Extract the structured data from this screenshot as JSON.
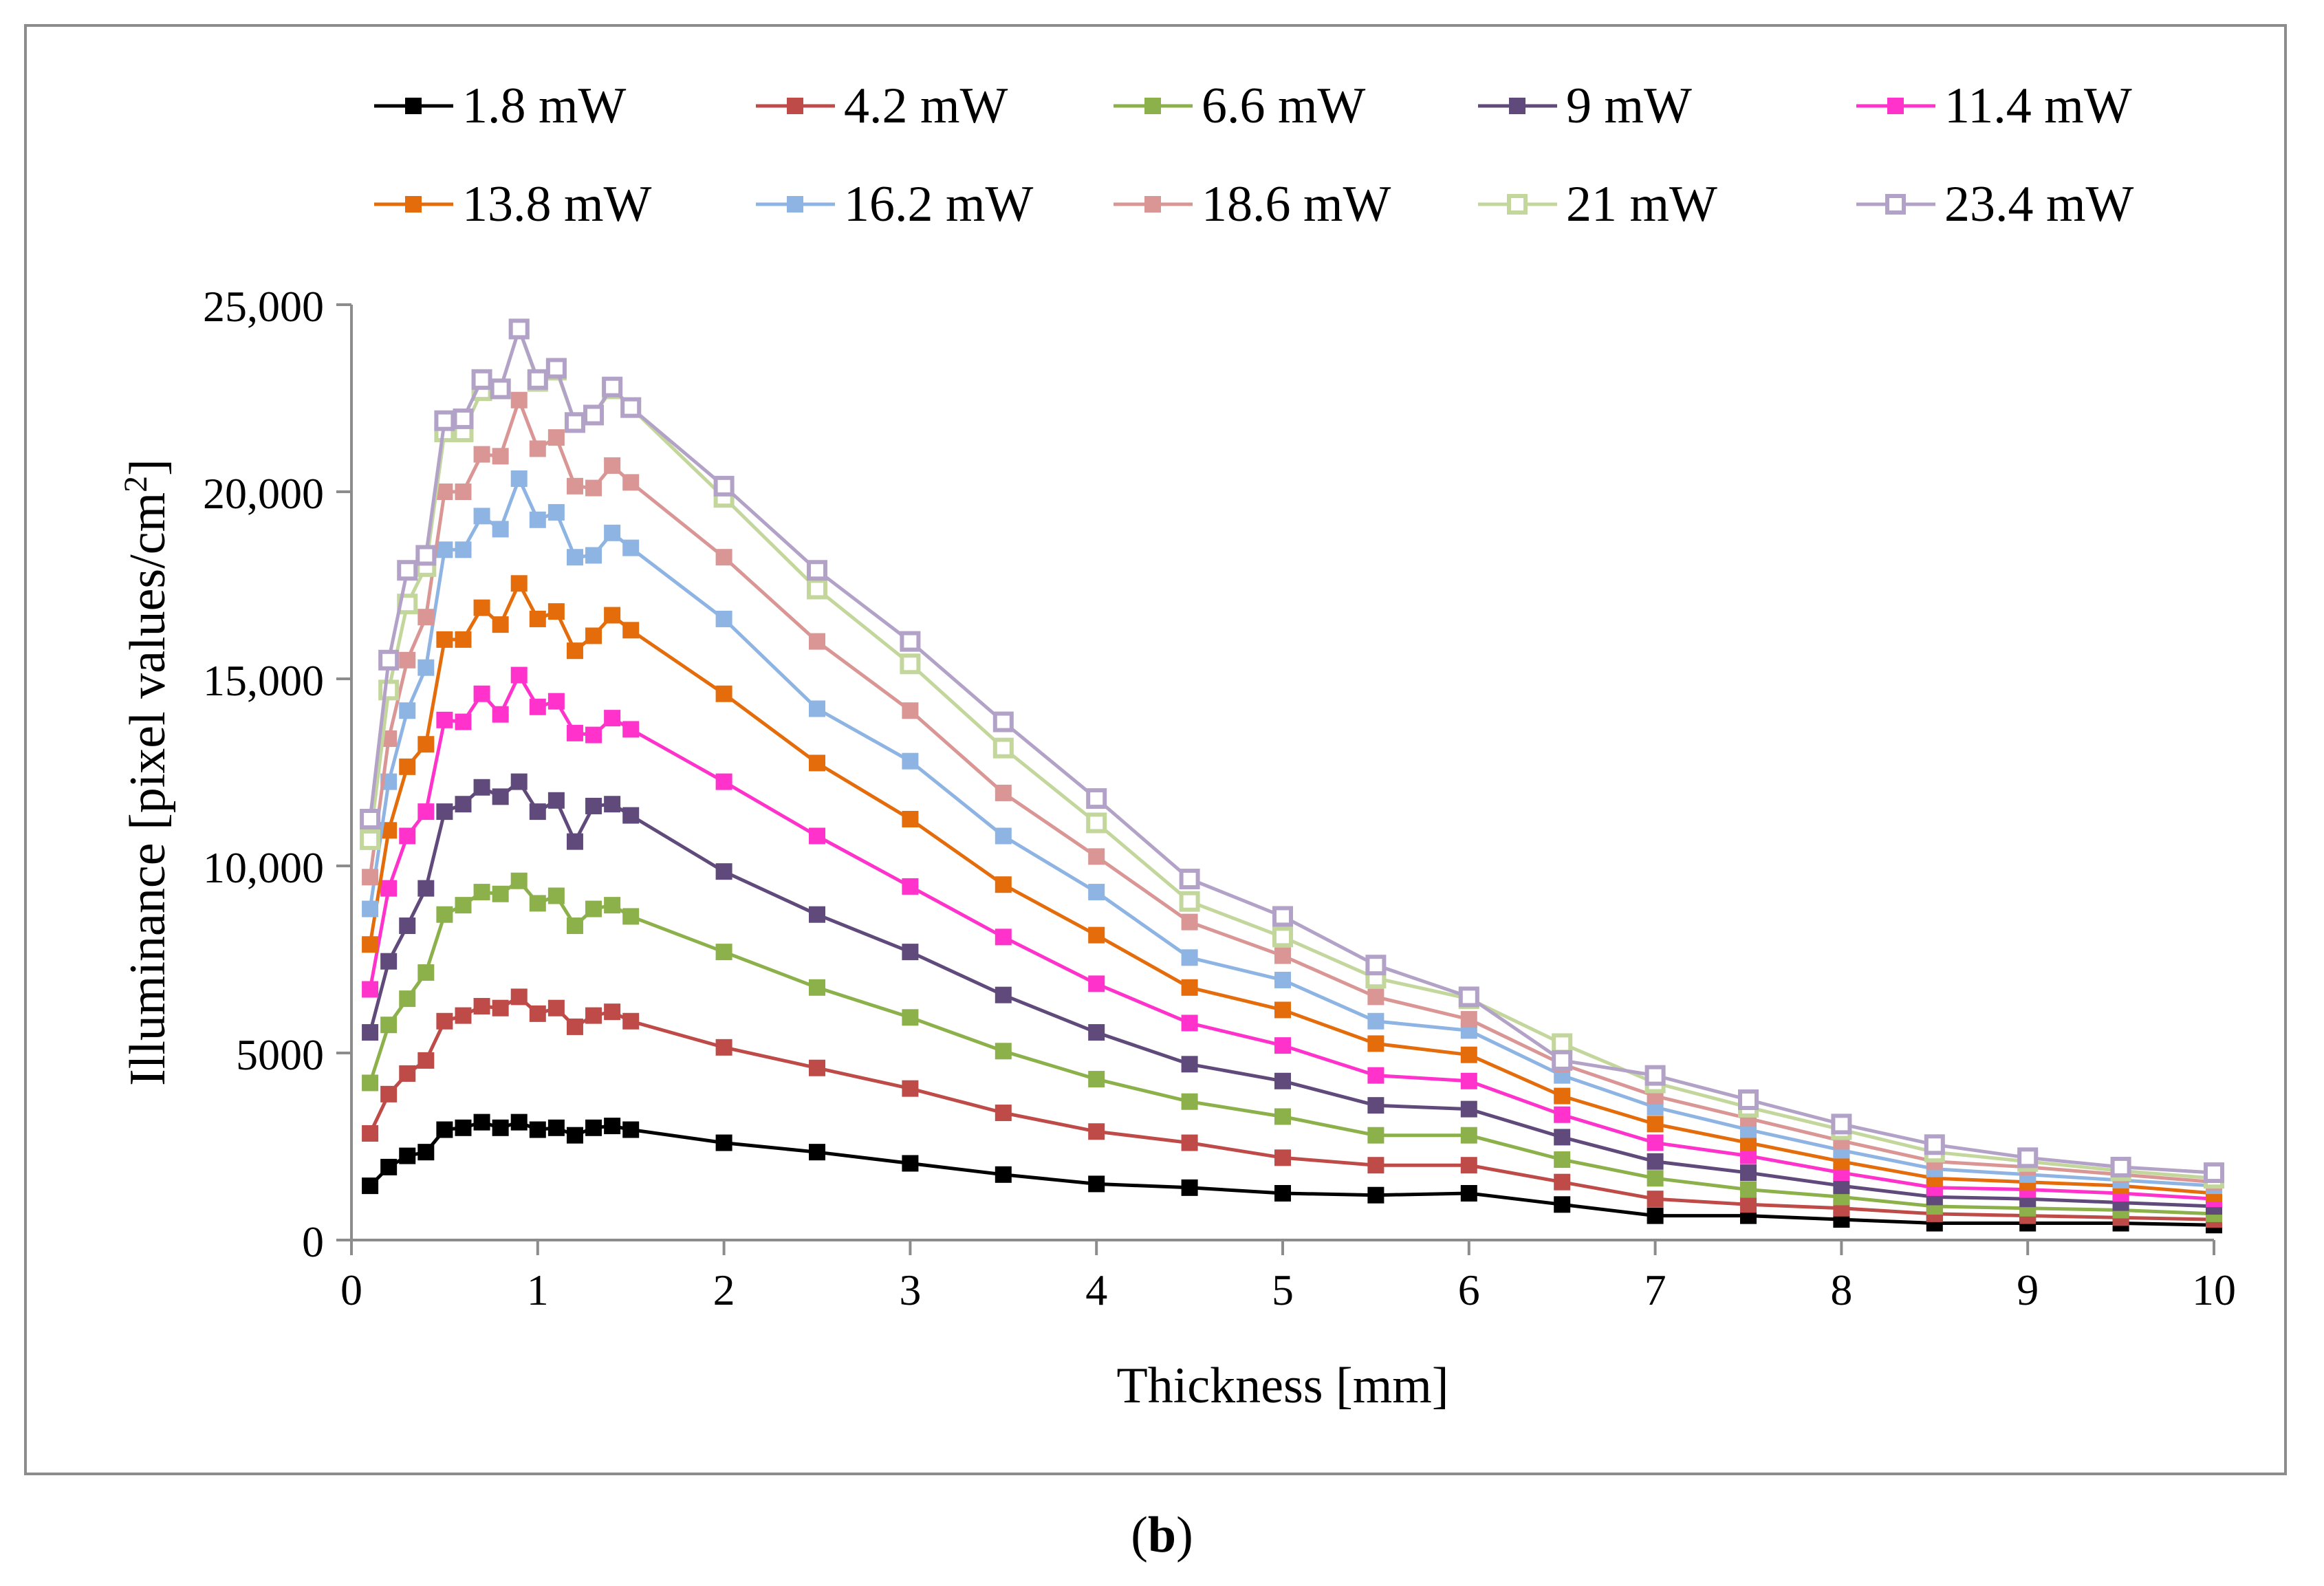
{
  "chart_data": {
    "type": "line",
    "title": "",
    "xlabel": "Thickness [mm]",
    "ylabel": "Illuminance [pixel values/cm",
    "ylabel_superscript": "2",
    "ylabel_close": "]",
    "xlim": [
      0,
      10
    ],
    "ylim": [
      0,
      25000
    ],
    "xticks": [
      0,
      1,
      2,
      3,
      4,
      5,
      6,
      7,
      8,
      9,
      10
    ],
    "xtick_labels": [
      "0",
      "1",
      "2",
      "3",
      "4",
      "5",
      "6",
      "7",
      "8",
      "9",
      "10"
    ],
    "yticks": [
      0,
      5000,
      10000,
      15000,
      20000,
      25000
    ],
    "ytick_labels": [
      "0",
      "5000",
      "10,000",
      "15,000",
      "20,000",
      "25,000"
    ],
    "grid": false,
    "legend_position": "top",
    "x": [
      0.1,
      0.2,
      0.3,
      0.4,
      0.5,
      0.6,
      0.7,
      0.8,
      0.9,
      1.0,
      1.1,
      1.2,
      1.3,
      1.4,
      1.5,
      2,
      2.5,
      3,
      3.5,
      4,
      4.5,
      5,
      5.5,
      6,
      6.5,
      7,
      7.5,
      8,
      8.5,
      9,
      9.5,
      10
    ],
    "series": [
      {
        "name": "1.8 mW",
        "color": "#000000",
        "marker": "filled",
        "values": [
          1450,
          1950,
          2250,
          2350,
          2950,
          3000,
          3150,
          3000,
          3150,
          2950,
          3000,
          2800,
          3000,
          3050,
          2950,
          2600,
          2350,
          2050,
          1750,
          1500,
          1400,
          1250,
          1200,
          1250,
          950,
          650,
          650,
          550,
          450,
          450,
          450,
          400
        ]
      },
      {
        "name": "4.2 mW",
        "color": "#be4b48",
        "marker": "filled",
        "values": [
          2850,
          3900,
          4450,
          4800,
          5850,
          6000,
          6250,
          6200,
          6500,
          6050,
          6200,
          5700,
          6000,
          6100,
          5850,
          5150,
          4600,
          4050,
          3400,
          2900,
          2600,
          2200,
          2000,
          2000,
          1550,
          1100,
          950,
          850,
          700,
          650,
          600,
          550
        ]
      },
      {
        "name": "6.6 mW",
        "color": "#8cb04a",
        "marker": "filled",
        "values": [
          4200,
          5750,
          6450,
          7150,
          8700,
          8950,
          9300,
          9250,
          9600,
          9000,
          9200,
          8400,
          8850,
          8950,
          8650,
          7700,
          6750,
          5950,
          5050,
          4300,
          3700,
          3300,
          2800,
          2800,
          2150,
          1650,
          1350,
          1150,
          900,
          850,
          800,
          700
        ]
      },
      {
        "name": "9 mW",
        "color": "#604a7b",
        "marker": "filled",
        "values": [
          5550,
          7450,
          8400,
          9400,
          11450,
          11650,
          12100,
          11850,
          12250,
          11450,
          11750,
          10650,
          11600,
          11650,
          11350,
          9850,
          8700,
          7700,
          6550,
          5550,
          4700,
          4250,
          3600,
          3500,
          2750,
          2100,
          1800,
          1450,
          1150,
          1100,
          1000,
          900
        ]
      },
      {
        "name": "11.4 mW",
        "color": "#ff33cc",
        "marker": "filled",
        "values": [
          6700,
          9400,
          10800,
          11450,
          13900,
          13850,
          14600,
          14050,
          15100,
          14250,
          14400,
          13550,
          13500,
          13950,
          13650,
          12250,
          10800,
          9450,
          8100,
          6850,
          5800,
          5200,
          4400,
          4250,
          3350,
          2600,
          2250,
          1800,
          1400,
          1350,
          1250,
          1100
        ]
      },
      {
        "name": "13.8 mW",
        "color": "#e46c0a",
        "marker": "filled",
        "values": [
          7900,
          10950,
          12650,
          13250,
          16050,
          16050,
          16900,
          16450,
          17550,
          16600,
          16800,
          15750,
          16150,
          16700,
          16300,
          14600,
          12750,
          11250,
          9500,
          8150,
          6750,
          6150,
          5250,
          4950,
          3850,
          3100,
          2600,
          2100,
          1650,
          1550,
          1450,
          1250
        ]
      },
      {
        "name": "16.2 mW",
        "color": "#8eb4e3",
        "marker": "filled",
        "values": [
          8850,
          12250,
          14150,
          15300,
          18450,
          18450,
          19350,
          19000,
          20350,
          19250,
          19450,
          18250,
          18300,
          18900,
          18500,
          16600,
          14200,
          12800,
          10800,
          9300,
          7550,
          6950,
          5850,
          5600,
          4400,
          3550,
          2950,
          2400,
          1900,
          1750,
          1600,
          1450
        ]
      },
      {
        "name": "18.6 mW",
        "color": "#d99694",
        "marker": "filled",
        "values": [
          9700,
          13400,
          15500,
          16650,
          20000,
          20000,
          21000,
          20950,
          22450,
          21150,
          21450,
          20150,
          20100,
          20700,
          20250,
          18250,
          16000,
          14150,
          11950,
          10250,
          8500,
          7600,
          6500,
          5900,
          4700,
          3850,
          3250,
          2650,
          2100,
          1950,
          1750,
          1550
        ]
      },
      {
        "name": "21 mW",
        "color": "#c3d69b",
        "marker": "hollow",
        "values": [
          10700,
          14700,
          17000,
          18000,
          21600,
          21600,
          22700,
          22750,
          24350,
          22950,
          23250,
          21850,
          22050,
          22750,
          22250,
          19850,
          17400,
          15400,
          13150,
          11150,
          9050,
          8100,
          7000,
          6450,
          5250,
          4200,
          3550,
          2950,
          2350,
          2100,
          1850,
          1650
        ]
      },
      {
        "name": "23.4 mW",
        "color": "#b3a2c7",
        "marker": "hollow",
        "values": [
          11250,
          15500,
          17900,
          18300,
          21900,
          21950,
          23000,
          22750,
          24350,
          23000,
          23300,
          21850,
          22050,
          22800,
          22250,
          20150,
          17900,
          16000,
          13850,
          11800,
          9650,
          8650,
          7350,
          6500,
          4800,
          4400,
          3750,
          3100,
          2550,
          2200,
          1950,
          1800
        ]
      }
    ]
  },
  "caption": {
    "prefix": "(",
    "label": "b",
    "suffix": ")"
  }
}
